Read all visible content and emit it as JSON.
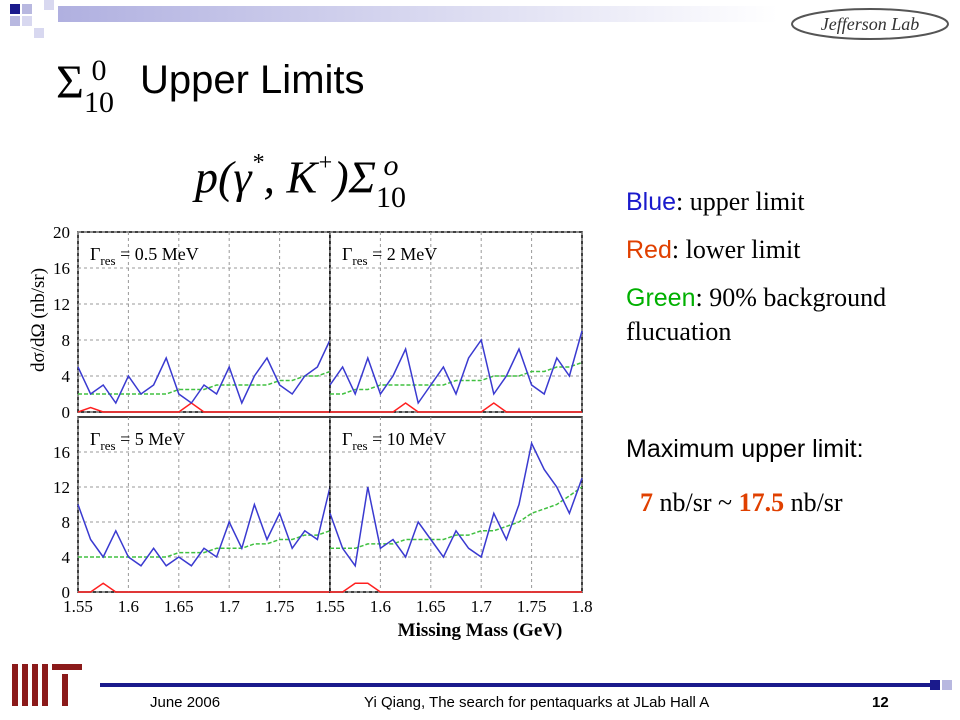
{
  "logo": "Jefferson Lab",
  "title": "Upper Limits",
  "title_symbol": {
    "sign": "Σ",
    "sup": "0",
    "sub": "10"
  },
  "formula": {
    "p": "p(γ",
    "star": "*",
    "mid": ", K",
    "plus": "+",
    "close": ")Σ",
    "sup": "o",
    "sub": "10"
  },
  "notes": [
    {
      "key": "Blue",
      "color": "#1a1acc",
      "text": ": upper limit"
    },
    {
      "key": "Red",
      "color": "#e04000",
      "text": ": lower limit"
    },
    {
      "key": "Green",
      "color": "#00b000",
      "text": ": 90% background flucuation"
    }
  ],
  "maximum": {
    "heading": "Maximum upper limit:",
    "low": "7",
    "sep": " nb/sr ~ ",
    "high": "17.5",
    "unit": " nb/sr"
  },
  "axis_labels": {
    "y": "dσ/dΩ (nb/sr)",
    "x": "Missing Mass (GeV)"
  },
  "footer": {
    "date": "June 2006",
    "text": "Yi Qiang, The search for pentaquarks at JLab Hall A",
    "page": "12"
  },
  "chart_data": [
    {
      "type": "line",
      "annotation": {
        "symbol": "Γ",
        "sub": "res",
        "text": " = 0.5 MeV"
      },
      "x": [
        1.55,
        1.5625,
        1.575,
        1.5875,
        1.6,
        1.6125,
        1.625,
        1.6375,
        1.65,
        1.6625,
        1.675,
        1.6875,
        1.7,
        1.7125,
        1.725,
        1.7375,
        1.75,
        1.7625,
        1.775,
        1.7875,
        1.8
      ],
      "xlim": [
        1.55,
        1.8
      ],
      "ylim": [
        0,
        20
      ],
      "xticks": [
        1.55,
        1.6,
        1.65,
        1.7,
        1.75
      ],
      "yticks": [
        0,
        4,
        8,
        12,
        16,
        20
      ],
      "xtick_labels": false,
      "ytick_labels": true,
      "grid": true,
      "series": [
        {
          "name": "Blue",
          "color": "#3a3ad0",
          "values": [
            5,
            2,
            3,
            1,
            4,
            2,
            3,
            6,
            2,
            1,
            3,
            2,
            5,
            1,
            4,
            6,
            3,
            2,
            4,
            5,
            8
          ]
        },
        {
          "name": "Green",
          "color": "#40c040",
          "values": [
            2,
            2,
            2,
            2,
            2,
            2,
            2,
            2,
            2.5,
            2.5,
            2.5,
            3,
            3,
            3,
            3,
            3,
            3.5,
            3.5,
            4,
            4,
            4.5
          ]
        },
        {
          "name": "Red",
          "color": "#ff2020",
          "values": [
            0,
            0.5,
            0,
            0,
            0,
            0,
            0,
            0,
            0,
            1,
            0,
            0,
            0,
            0,
            0,
            0,
            0,
            0,
            0,
            0,
            0
          ]
        }
      ]
    },
    {
      "type": "line",
      "annotation": {
        "symbol": "Γ",
        "sub": "res",
        "text": " = 2 MeV"
      },
      "x": [
        1.55,
        1.5625,
        1.575,
        1.5875,
        1.6,
        1.6125,
        1.625,
        1.6375,
        1.65,
        1.6625,
        1.675,
        1.6875,
        1.7,
        1.7125,
        1.725,
        1.7375,
        1.75,
        1.7625,
        1.775,
        1.7875,
        1.8
      ],
      "xlim": [
        1.55,
        1.8
      ],
      "ylim": [
        0,
        20
      ],
      "xticks": [
        1.55,
        1.6,
        1.65,
        1.7,
        1.75,
        1.8
      ],
      "yticks": [
        0,
        4,
        8,
        12,
        16,
        20
      ],
      "xtick_labels": false,
      "ytick_labels": false,
      "grid": true,
      "series": [
        {
          "name": "Blue",
          "color": "#3a3ad0",
          "values": [
            3,
            5,
            2,
            6,
            2,
            4,
            7,
            1,
            3,
            5,
            2,
            6,
            8,
            2,
            4,
            7,
            3,
            2,
            6,
            4,
            9
          ]
        },
        {
          "name": "Green",
          "color": "#40c040",
          "values": [
            2,
            2,
            2.5,
            2.5,
            3,
            3,
            3,
            3,
            3,
            3,
            3.5,
            3.5,
            3.5,
            4,
            4,
            4,
            4.5,
            4.5,
            5,
            5,
            5.5
          ]
        },
        {
          "name": "Red",
          "color": "#ff2020",
          "values": [
            0,
            0,
            0,
            0,
            0,
            0,
            1,
            0,
            0,
            0,
            0,
            0,
            0,
            1,
            0,
            0,
            0,
            0,
            0,
            0,
            0
          ]
        }
      ]
    },
    {
      "type": "line",
      "annotation": {
        "symbol": "Γ",
        "sub": "res",
        "text": " = 5 MeV"
      },
      "x": [
        1.55,
        1.5625,
        1.575,
        1.5875,
        1.6,
        1.6125,
        1.625,
        1.6375,
        1.65,
        1.6625,
        1.675,
        1.6875,
        1.7,
        1.7125,
        1.725,
        1.7375,
        1.75,
        1.7625,
        1.775,
        1.7875,
        1.8
      ],
      "xlim": [
        1.55,
        1.8
      ],
      "ylim": [
        0,
        20
      ],
      "xticks": [
        1.55,
        1.6,
        1.65,
        1.7,
        1.75
      ],
      "yticks": [
        0,
        4,
        8,
        12,
        16
      ],
      "xtick_labels": true,
      "ytick_labels": true,
      "grid": true,
      "series": [
        {
          "name": "Blue",
          "color": "#3a3ad0",
          "values": [
            10,
            6,
            4,
            7,
            4,
            3,
            5,
            3,
            4,
            3,
            5,
            4,
            8,
            5,
            10,
            6,
            9,
            5,
            7,
            6,
            12
          ]
        },
        {
          "name": "Green",
          "color": "#40c040",
          "values": [
            4,
            4,
            4,
            4,
            4,
            4,
            4,
            4,
            4.5,
            4.5,
            4.5,
            5,
            5,
            5,
            5.5,
            5.5,
            6,
            6,
            6.5,
            6.5,
            7
          ]
        },
        {
          "name": "Red",
          "color": "#ff2020",
          "values": [
            0,
            0,
            1,
            0,
            0,
            0,
            0,
            0,
            0,
            0,
            0,
            0,
            0,
            0,
            0,
            0,
            0,
            0,
            0,
            0,
            0
          ]
        }
      ]
    },
    {
      "type": "line",
      "annotation": {
        "symbol": "Γ",
        "sub": "res",
        "text": " = 10 MeV"
      },
      "x": [
        1.55,
        1.5625,
        1.575,
        1.5875,
        1.6,
        1.6125,
        1.625,
        1.6375,
        1.65,
        1.6625,
        1.675,
        1.6875,
        1.7,
        1.7125,
        1.725,
        1.7375,
        1.75,
        1.7625,
        1.775,
        1.7875,
        1.8
      ],
      "xlim": [
        1.55,
        1.8
      ],
      "ylim": [
        0,
        20
      ],
      "xticks": [
        1.55,
        1.6,
        1.65,
        1.7,
        1.75,
        1.8
      ],
      "yticks": [
        0,
        4,
        8,
        12,
        16
      ],
      "xtick_labels": true,
      "ytick_labels": false,
      "grid": true,
      "series": [
        {
          "name": "Blue",
          "color": "#3a3ad0",
          "values": [
            9,
            5,
            3,
            12,
            5,
            6,
            4,
            8,
            6,
            4,
            7,
            5,
            4,
            9,
            6,
            10,
            17,
            14,
            12,
            9,
            13
          ]
        },
        {
          "name": "Green",
          "color": "#40c040",
          "values": [
            5,
            5,
            5,
            5.5,
            5.5,
            5.5,
            6,
            6,
            6,
            6,
            6.5,
            6.5,
            7,
            7,
            7.5,
            8,
            9,
            9.5,
            10,
            11,
            12
          ]
        },
        {
          "name": "Red",
          "color": "#ff2020",
          "values": [
            0,
            0,
            1,
            1,
            0,
            0,
            0,
            0,
            0,
            0,
            0,
            0,
            0,
            0,
            0,
            0,
            0,
            0,
            0,
            0,
            0
          ]
        }
      ]
    }
  ]
}
